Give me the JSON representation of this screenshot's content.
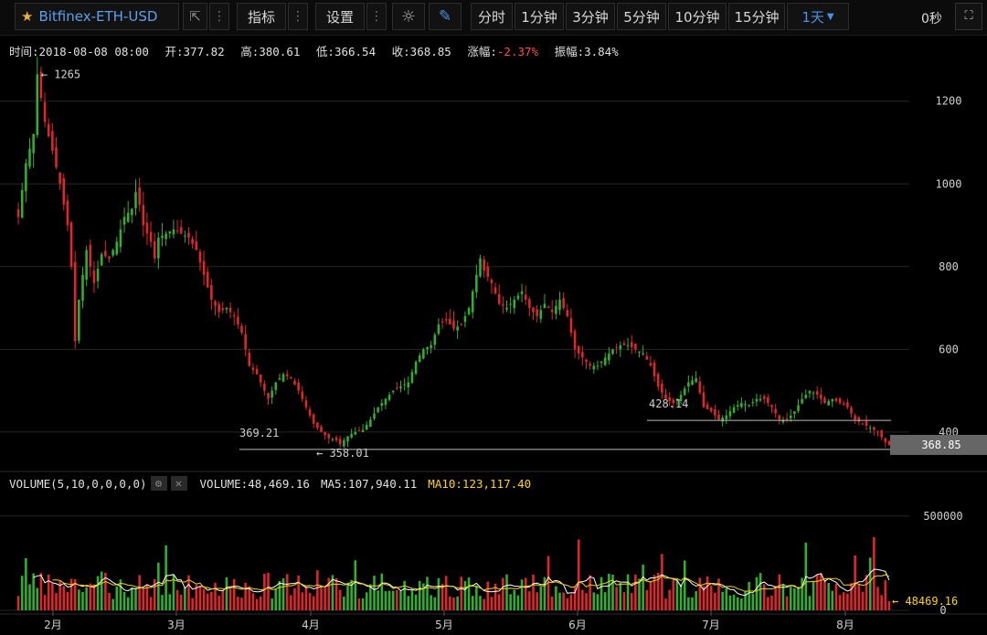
{
  "toolbar": {
    "symbol": "Bitfinex-ETH-USD",
    "indicators_label": "指标",
    "settings_label": "设置",
    "periods": [
      "分时",
      "1分钟",
      "3分钟",
      "5分钟",
      "10分钟",
      "15分钟"
    ],
    "active_period": "1天",
    "timer": "0秒"
  },
  "info": {
    "time_label": "时间:",
    "time_value": "2018-08-08 08:00",
    "open_label": "开:",
    "open_value": "377.82",
    "high_label": "高:",
    "high_value": "380.61",
    "low_label": "低:",
    "low_value": "366.54",
    "close_label": "收:",
    "close_value": "368.85",
    "change_label": "涨幅:",
    "change_value": "-2.37%",
    "amplitude_label": "振幅:",
    "amplitude_value": "3.84%"
  },
  "volume_bar": {
    "title": "VOLUME(5,10,0,0,0,0)",
    "volume": "VOLUME:48,469.16",
    "ma5": "MA5:107,940.11",
    "ma10": "MA10:123,117.40"
  },
  "colors": {
    "up": "#2fb12f",
    "down": "#e0262b",
    "ma5": "#ffffff",
    "ma10": "#f5d400",
    "grid": "#262626",
    "accent": "#4a90e2"
  },
  "chart_data": {
    "type": "candlestick",
    "price_axis": {
      "ticks": [
        400,
        600,
        800,
        1000,
        1200
      ],
      "range": [
        340,
        1290
      ]
    },
    "volume_axis": {
      "ticks": [
        0,
        500000
      ],
      "range": [
        0,
        620000
      ]
    },
    "x_ticks": [
      "2月",
      "3月",
      "4月",
      "5月",
      "6月",
      "7月",
      "8月"
    ],
    "annotations": {
      "high_label": "1265",
      "low_label": "358.01",
      "level1_label": "369.21",
      "level2_label": "428.14",
      "last_price": "368.85",
      "last_volume": "48469.16"
    },
    "close_anchors": [
      [
        0,
        920
      ],
      [
        2,
        1050
      ],
      [
        4,
        1120
      ],
      [
        5,
        1265
      ],
      [
        7,
        1150
      ],
      [
        9,
        1080
      ],
      [
        11,
        1000
      ],
      [
        13,
        900
      ],
      [
        14,
        800
      ],
      [
        15,
        620
      ],
      [
        16,
        720
      ],
      [
        18,
        840
      ],
      [
        20,
        760
      ],
      [
        22,
        830
      ],
      [
        24,
        820
      ],
      [
        26,
        860
      ],
      [
        28,
        920
      ],
      [
        30,
        940
      ],
      [
        31,
        980
      ],
      [
        32,
        950
      ],
      [
        33,
        900
      ],
      [
        35,
        860
      ],
      [
        36,
        820
      ],
      [
        37,
        870
      ],
      [
        39,
        880
      ],
      [
        41,
        890
      ],
      [
        43,
        880
      ],
      [
        45,
        870
      ],
      [
        47,
        840
      ],
      [
        49,
        780
      ],
      [
        51,
        720
      ],
      [
        53,
        690
      ],
      [
        55,
        700
      ],
      [
        57,
        680
      ],
      [
        59,
        640
      ],
      [
        61,
        560
      ],
      [
        63,
        540
      ],
      [
        65,
        500
      ],
      [
        66,
        480
      ],
      [
        68,
        520
      ],
      [
        70,
        540
      ],
      [
        72,
        530
      ],
      [
        74,
        500
      ],
      [
        76,
        460
      ],
      [
        78,
        420
      ],
      [
        80,
        400
      ],
      [
        82,
        385
      ],
      [
        84,
        380
      ],
      [
        85,
        370
      ],
      [
        87,
        390
      ],
      [
        89,
        400
      ],
      [
        91,
        405
      ],
      [
        93,
        430
      ],
      [
        95,
        460
      ],
      [
        97,
        480
      ],
      [
        99,
        500
      ],
      [
        101,
        510
      ],
      [
        103,
        520
      ],
      [
        105,
        570
      ],
      [
        107,
        600
      ],
      [
        109,
        610
      ],
      [
        111,
        660
      ],
      [
        113,
        670
      ],
      [
        115,
        650
      ],
      [
        117,
        660
      ],
      [
        119,
        700
      ],
      [
        121,
        780
      ],
      [
        122,
        820
      ],
      [
        123,
        790
      ],
      [
        125,
        760
      ],
      [
        127,
        710
      ],
      [
        129,
        700
      ],
      [
        131,
        720
      ],
      [
        133,
        740
      ],
      [
        135,
        700
      ],
      [
        137,
        680
      ],
      [
        139,
        710
      ],
      [
        141,
        690
      ],
      [
        143,
        720
      ],
      [
        145,
        680
      ],
      [
        147,
        600
      ],
      [
        149,
        580
      ],
      [
        151,
        560
      ],
      [
        153,
        560
      ],
      [
        155,
        580
      ],
      [
        157,
        600
      ],
      [
        159,
        610
      ],
      [
        161,
        610
      ],
      [
        163,
        600
      ],
      [
        165,
        590
      ],
      [
        167,
        560
      ],
      [
        169,
        510
      ],
      [
        171,
        480
      ],
      [
        173,
        470
      ],
      [
        175,
        490
      ],
      [
        177,
        520
      ],
      [
        179,
        530
      ],
      [
        181,
        460
      ],
      [
        183,
        450
      ],
      [
        185,
        430
      ],
      [
        187,
        440
      ],
      [
        189,
        460
      ],
      [
        191,
        470
      ],
      [
        193,
        465
      ],
      [
        195,
        480
      ],
      [
        197,
        480
      ],
      [
        199,
        460
      ],
      [
        201,
        430
      ],
      [
        203,
        430
      ],
      [
        205,
        450
      ],
      [
        207,
        480
      ],
      [
        209,
        500
      ],
      [
        211,
        490
      ],
      [
        213,
        470
      ],
      [
        215,
        480
      ],
      [
        217,
        470
      ],
      [
        219,
        460
      ],
      [
        221,
        430
      ],
      [
        223,
        420
      ],
      [
        225,
        410
      ],
      [
        227,
        400
      ],
      [
        229,
        375
      ],
      [
        230,
        368.85
      ]
    ],
    "last_candle": {
      "open": 377.82,
      "high": 380.61,
      "low": 366.54,
      "close": 368.85,
      "volume": 48469.16
    }
  }
}
